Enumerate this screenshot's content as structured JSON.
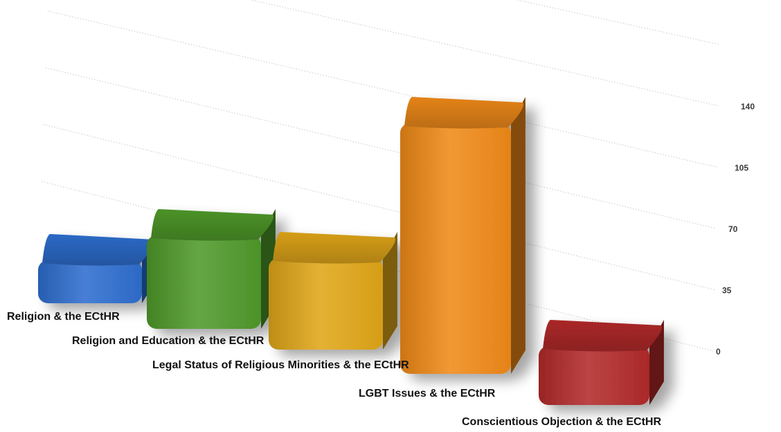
{
  "chart_data": {
    "type": "bar",
    "categories": [
      "Religion & the ECtHR",
      "Religion and Education & the ECtHR",
      "Legal Status of Religious Minorities & the ECtHR",
      "LGBT Issues & the ECtHR",
      "Conscientious Objection & the ECtHR"
    ],
    "values": [
      12,
      38,
      30,
      140,
      10
    ],
    "ylim": [
      0,
      175
    ],
    "yticks": [
      "0",
      "35",
      "70",
      "105",
      "140"
    ],
    "grid": true,
    "legend": "none",
    "style": "3d",
    "colors": [
      "#2e6ecf",
      "#4f9a2a",
      "#e0a617",
      "#f08a18",
      "#b32a2a"
    ]
  }
}
